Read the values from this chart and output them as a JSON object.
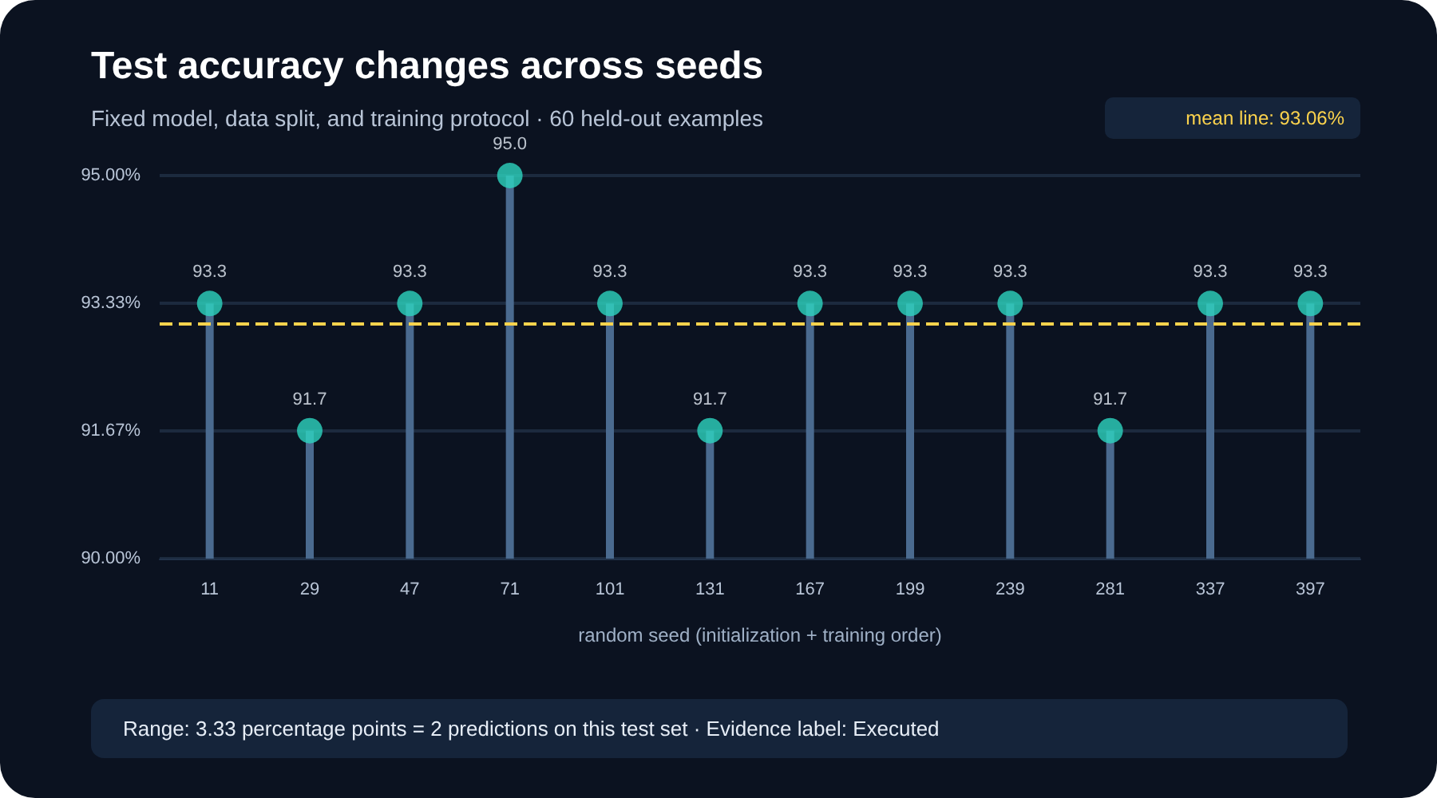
{
  "chart_data": {
    "type": "lollipop",
    "title": "Test accuracy changes across seeds",
    "subtitle": "Fixed model, data split, and training protocol · 60 held-out examples",
    "xlabel": "random seed (initialization + training order)",
    "categories": [
      "11",
      "29",
      "47",
      "71",
      "101",
      "131",
      "167",
      "199",
      "239",
      "281",
      "337",
      "397"
    ],
    "values": [
      93.33,
      91.67,
      93.33,
      95.0,
      93.33,
      91.67,
      93.33,
      93.33,
      93.33,
      91.67,
      93.33,
      93.33
    ],
    "value_labels": [
      "93.3",
      "91.7",
      "93.3",
      "95.0",
      "93.3",
      "91.7",
      "93.3",
      "93.3",
      "93.3",
      "91.7",
      "93.3",
      "93.3"
    ],
    "color": "#2dd4bf",
    "marker": "circle",
    "ylim": [
      90,
      95
    ],
    "yticks": [
      {
        "value": 90,
        "label": "90.00%"
      },
      {
        "value": 91.67,
        "label": "91.67%"
      },
      {
        "value": 93.33,
        "label": "93.33%"
      },
      {
        "value": 95,
        "label": "95.00%"
      }
    ],
    "grid": "y",
    "ref_lines": [
      {
        "axis": "y",
        "value": 93.06,
        "label": "mean line: 93.06%",
        "color": "#fcd34d",
        "line_style": "dashed"
      }
    ],
    "annotations": [
      "Range: 3.33 percentage points = 2 predictions on this test set · Evidence label: Executed"
    ]
  }
}
